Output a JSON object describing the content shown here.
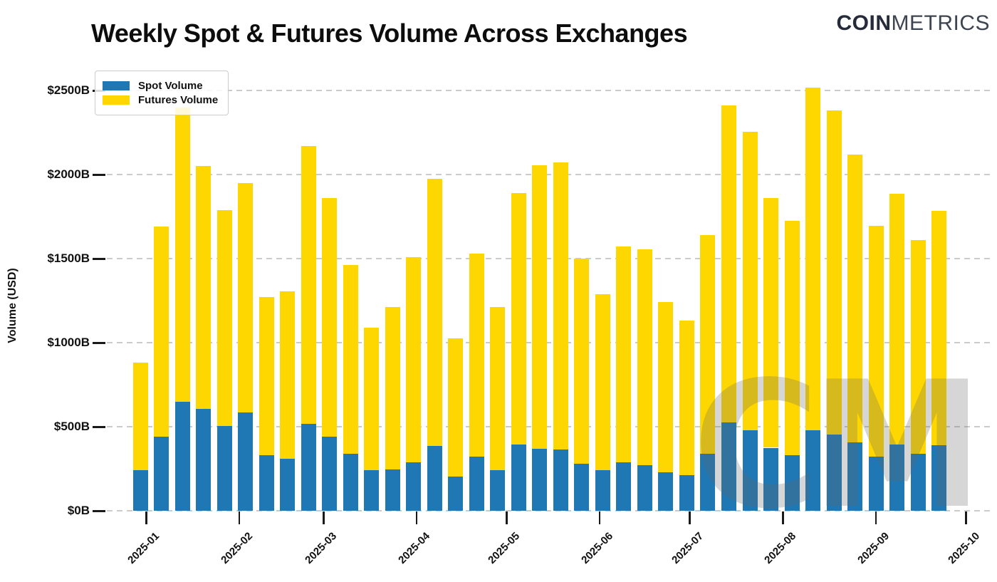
{
  "header": {
    "title": "Weekly Spot & Futures Volume Across Exchanges",
    "logo_bold": "COIN",
    "logo_light": "METRICS"
  },
  "watermark": {
    "text": "CM",
    "color": "#d4d4d4"
  },
  "chart_data": {
    "type": "bar",
    "stacked": true,
    "title": "Weekly Spot & Futures Volume Across Exchanges",
    "xlabel": "",
    "ylabel": "Volume (USD)",
    "ylim": [
      0,
      2630
    ],
    "grid": "horizontal-dashed",
    "legend_position": "upper left",
    "n_bars": 39,
    "bar_period": "weekly",
    "y_tick_values": [
      0,
      500,
      1000,
      1500,
      2000,
      2500
    ],
    "y_tick_labels": [
      "$0B",
      "$500B",
      "$1000B",
      "$1500B",
      "$2000B",
      "$2500B"
    ],
    "x_tick_labels": [
      "2025-01",
      "2025-02",
      "2025-03",
      "2025-04",
      "2025-05",
      "2025-06",
      "2025-07",
      "2025-08",
      "2025-09",
      "2025-10"
    ],
    "series": [
      {
        "name": "Spot Volume",
        "color": "#1f77b4",
        "values": [
          240,
          440,
          650,
          605,
          505,
          585,
          330,
          310,
          515,
          440,
          340,
          240,
          245,
          290,
          385,
          205,
          320,
          240,
          395,
          370,
          365,
          280,
          240,
          290,
          270,
          230,
          210,
          340,
          525,
          480,
          375,
          330,
          480,
          455,
          405,
          320,
          395,
          340,
          390
        ]
      },
      {
        "name": "Futures Volume",
        "color": "#ffd700",
        "values": [
          640,
          1250,
          1750,
          1445,
          1285,
          1365,
          940,
          995,
          1655,
          1420,
          1120,
          850,
          965,
          1220,
          1590,
          820,
          1210,
          970,
          1495,
          1685,
          1705,
          1220,
          1050,
          1280,
          1285,
          1010,
          920,
          1300,
          1885,
          1775,
          1485,
          1395,
          2035,
          1925,
          1715,
          1375,
          1490,
          1270,
          1395
        ]
      }
    ],
    "totals": [
      880,
      1690,
      2400,
      2050,
      1790,
      1950,
      1270,
      1305,
      2170,
      1860,
      1460,
      1090,
      1210,
      1510,
      1975,
      1025,
      1530,
      1210,
      1890,
      2055,
      2070,
      1500,
      1290,
      1570,
      1555,
      1240,
      1130,
      1640,
      2410,
      2255,
      1860,
      1725,
      2515,
      2380,
      2120,
      1695,
      1885,
      1610,
      1785
    ]
  }
}
